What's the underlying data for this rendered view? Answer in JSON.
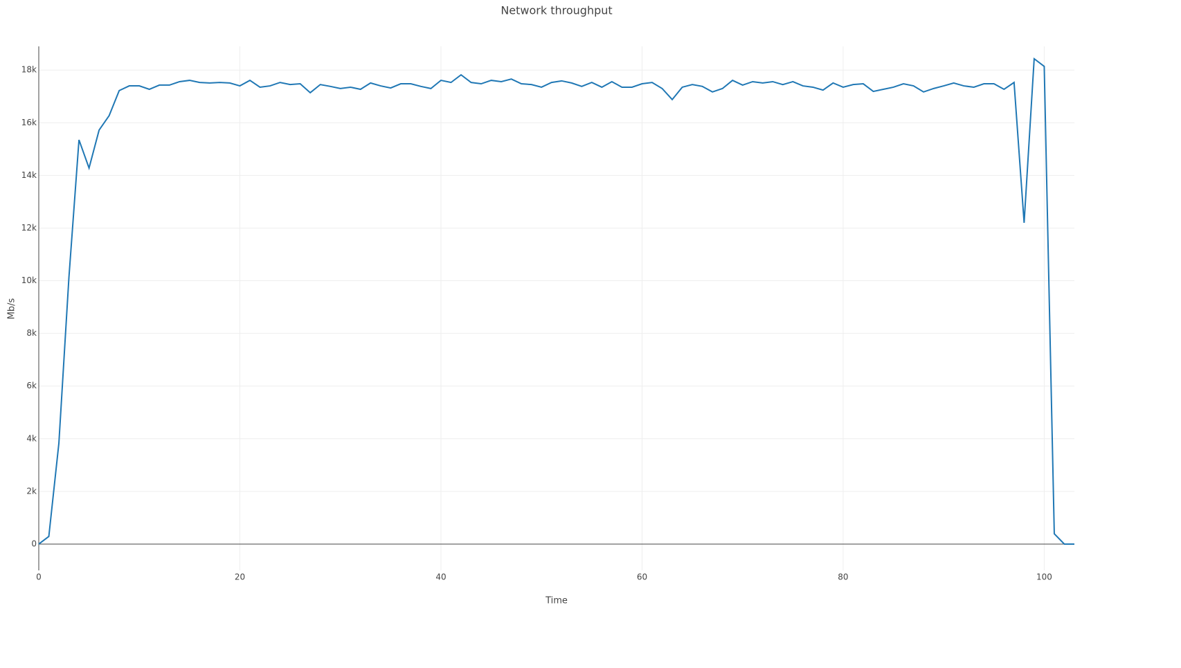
{
  "chart_data": {
    "type": "line",
    "title": "Network throughput",
    "x_label": "Time",
    "y_label": "Mb/s",
    "x": [
      0,
      1,
      2,
      3,
      4,
      5,
      6,
      7,
      8,
      9,
      10,
      11,
      12,
      13,
      14,
      15,
      16,
      17,
      18,
      19,
      20,
      21,
      22,
      23,
      24,
      25,
      26,
      27,
      28,
      29,
      30,
      31,
      32,
      33,
      34,
      35,
      36,
      37,
      38,
      39,
      40,
      41,
      42,
      43,
      44,
      45,
      46,
      47,
      48,
      49,
      50,
      51,
      52,
      53,
      54,
      55,
      56,
      57,
      58,
      59,
      60,
      61,
      62,
      63,
      64,
      65,
      66,
      67,
      68,
      69,
      70,
      71,
      72,
      73,
      74,
      75,
      76,
      77,
      78,
      79,
      80,
      81,
      82,
      83,
      84,
      85,
      86,
      87,
      88,
      89,
      90,
      91,
      92,
      93,
      94,
      95,
      96,
      97,
      98,
      99,
      100,
      101,
      102,
      103
    ],
    "series": [
      {
        "name": "Mb/s",
        "color": "#1f77b4",
        "values": [
          0,
          290,
          3830,
          10130,
          15350,
          14280,
          15720,
          16270,
          17220,
          17400,
          17400,
          17270,
          17430,
          17430,
          17560,
          17610,
          17530,
          17510,
          17530,
          17510,
          17400,
          17610,
          17350,
          17400,
          17530,
          17450,
          17480,
          17140,
          17450,
          17380,
          17300,
          17350,
          17270,
          17510,
          17400,
          17320,
          17480,
          17480,
          17380,
          17300,
          17610,
          17530,
          17820,
          17530,
          17480,
          17610,
          17560,
          17660,
          17480,
          17450,
          17350,
          17530,
          17590,
          17510,
          17380,
          17530,
          17350,
          17560,
          17350,
          17350,
          17480,
          17530,
          17300,
          16880,
          17350,
          17450,
          17380,
          17170,
          17300,
          17610,
          17430,
          17560,
          17510,
          17560,
          17450,
          17560,
          17400,
          17350,
          17240,
          17510,
          17350,
          17450,
          17480,
          17190,
          17270,
          17350,
          17480,
          17400,
          17170,
          17300,
          17400,
          17510,
          17400,
          17350,
          17480,
          17480,
          17270,
          17530,
          12200,
          18430,
          18140,
          390,
          0,
          0
        ]
      }
    ],
    "xlim": [
      0,
      103
    ],
    "ylim": [
      -1000,
      18900
    ],
    "xticks": [
      0,
      20,
      40,
      60,
      80,
      100
    ],
    "yticks": [
      0,
      {
        "value": 2000,
        "label": "2k"
      },
      {
        "value": 4000,
        "label": "4k"
      },
      {
        "value": 6000,
        "label": "6k"
      },
      {
        "value": 8000,
        "label": "8k"
      },
      {
        "value": 10000,
        "label": "10k"
      },
      {
        "value": 12000,
        "label": "12k"
      },
      {
        "value": 14000,
        "label": "14k"
      },
      {
        "value": 16000,
        "label": "16k"
      },
      {
        "value": 18000,
        "label": "18k"
      }
    ],
    "grid": true
  }
}
